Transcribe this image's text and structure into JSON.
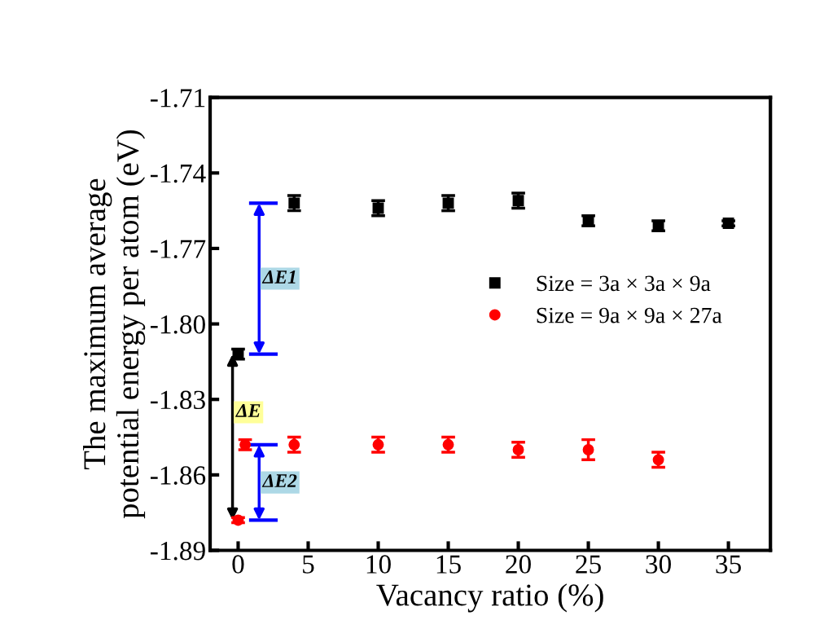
{
  "chart_data": {
    "type": "scatter",
    "xlabel": "Vacancy ratio (%)",
    "ylabel": "The maximum average\npotential energy per atom (eV)",
    "xlim": [
      -2,
      38
    ],
    "xticks": [
      0,
      5,
      10,
      15,
      20,
      25,
      30,
      35
    ],
    "ylim": [
      -1.89,
      -1.71
    ],
    "yticks": [
      {
        "value": -1.89,
        "label": "-1.89"
      },
      {
        "value": -1.86,
        "label": "-1.86"
      },
      {
        "value": -1.83,
        "label": "-1.83"
      },
      {
        "value": -1.8,
        "label": "-1.80"
      },
      {
        "value": -1.77,
        "label": "-1.77"
      },
      {
        "value": -1.74,
        "label": "-1.74"
      },
      {
        "value": -1.71,
        "label": "-1.71"
      }
    ],
    "grid": false,
    "legend": "right",
    "series": [
      {
        "name": "Size = 3a × 3a × 9a",
        "color": "#000000",
        "marker": "square",
        "x": [
          0,
          4,
          10,
          15,
          20,
          25,
          30,
          35
        ],
        "values": [
          -1.812,
          -1.752,
          -1.754,
          -1.752,
          -1.751,
          -1.759,
          -1.761,
          -1.76
        ],
        "errors": [
          0.002,
          0.003,
          0.003,
          0.003,
          0.003,
          0.002,
          0.002,
          0.001
        ]
      },
      {
        "name": "Size = 9a × 9a × 27a",
        "color": "#ff0000",
        "marker": "circle",
        "x": [
          0,
          0.5,
          4,
          10,
          15,
          20,
          25,
          30
        ],
        "values": [
          -1.878,
          -1.848,
          -1.848,
          -1.848,
          -1.848,
          -1.85,
          -1.85,
          -1.854
        ],
        "errors": [
          0.001,
          0.002,
          0.003,
          0.003,
          0.003,
          0.003,
          0.004,
          0.003
        ]
      }
    ],
    "annotations": [
      "ΔE1",
      "ΔE",
      "ΔE2"
    ]
  }
}
